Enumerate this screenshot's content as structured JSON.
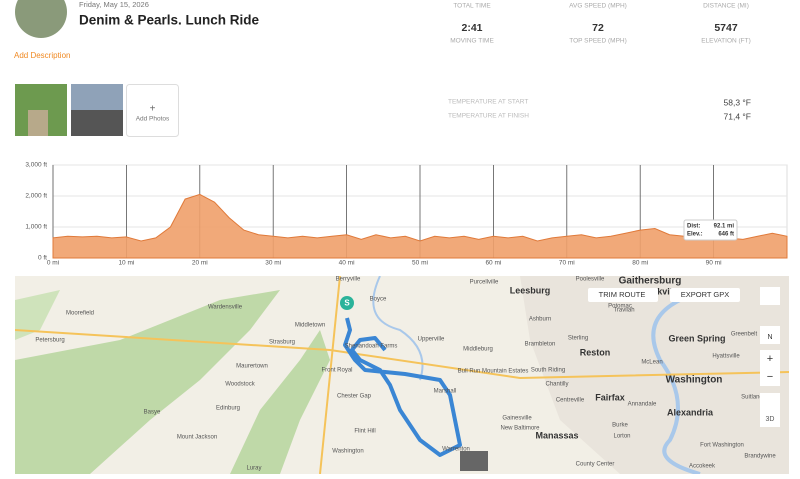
{
  "header": {
    "date": "Friday, May 15, 2026",
    "title": "Denim & Pearls. Lunch Ride",
    "add_description": "Add Description"
  },
  "stats": [
    {
      "label": "TOTAL TIME",
      "value": "2:41",
      "sublabel": "MOVING TIME"
    },
    {
      "label": "AVG SPEED (MPH)",
      "value": "72",
      "sublabel": "TOP SPEED (MPH)"
    },
    {
      "label": "DISTANCE (MI)",
      "value": "5747",
      "sublabel": "ELEVATION (FT)"
    }
  ],
  "photos": {
    "add_label": "Add Photos"
  },
  "temperature": [
    {
      "label": "TEMPERATURE AT START",
      "value": "58,3 °F"
    },
    {
      "label": "TEMPERATURE AT FINISH",
      "value": "71,4 °F"
    }
  ],
  "chart_data": {
    "type": "area",
    "color": "#f0a06a",
    "x": [
      0,
      2,
      4,
      6,
      8,
      10,
      12,
      14,
      16,
      18,
      20,
      22,
      24,
      26,
      28,
      30,
      32,
      34,
      36,
      38,
      40,
      42,
      44,
      46,
      48,
      50,
      52,
      54,
      56,
      58,
      60,
      62,
      64,
      66,
      68,
      70,
      72,
      74,
      76,
      78,
      80,
      82,
      84,
      86,
      88,
      90,
      92,
      94,
      96,
      98,
      100
    ],
    "values": [
      650,
      700,
      680,
      700,
      650,
      680,
      550,
      650,
      1000,
      1900,
      2050,
      1800,
      1300,
      900,
      750,
      700,
      650,
      700,
      650,
      700,
      750,
      600,
      750,
      650,
      700,
      550,
      700,
      650,
      700,
      600,
      700,
      650,
      700,
      550,
      650,
      700,
      750,
      650,
      700,
      800,
      900,
      950,
      750,
      700,
      600,
      650,
      646,
      600,
      700,
      800,
      700
    ],
    "xlim": [
      0,
      100
    ],
    "ylim": [
      0,
      3000
    ],
    "xticks": [
      {
        "value": 0,
        "label": "0 mi"
      },
      {
        "value": 10,
        "label": "10 mi"
      },
      {
        "value": 20,
        "label": "20 mi"
      },
      {
        "value": 30,
        "label": "30 mi"
      },
      {
        "value": 40,
        "label": "40 mi"
      },
      {
        "value": 50,
        "label": "50 mi"
      },
      {
        "value": 60,
        "label": "60 mi"
      },
      {
        "value": 70,
        "label": "70 mi"
      },
      {
        "value": 80,
        "label": "80 mi"
      },
      {
        "value": 90,
        "label": "90 mi"
      }
    ],
    "yticks": [
      {
        "value": 0,
        "label": "0 ft"
      },
      {
        "value": 1000,
        "label": "1,000 ft"
      },
      {
        "value": 2000,
        "label": "2,000 ft"
      },
      {
        "value": 3000,
        "label": "3,000 ft"
      }
    ],
    "grid": true,
    "tooltip": {
      "dist_label": "Dist:",
      "dist": "92.1 mi",
      "elev_label": "Elev.:",
      "elev": "646 ft"
    }
  },
  "map": {
    "start": "S",
    "trim": "TRIM ROUTE",
    "export": "EXPORT GPX",
    "compass": "N",
    "zoom_in": "+",
    "zoom_out": "−",
    "three_d": "3D",
    "labels": [
      "Berryville",
      "Purcellville",
      "Leesburg",
      "Poolesville",
      "Gaithersburg",
      "Rockville",
      "Moorefield",
      "Wardensville",
      "Petersburg",
      "Strasburg",
      "Middletown",
      "Boyce",
      "Shenandoah Farms",
      "Front Royal",
      "Upperville",
      "Middleburg",
      "Ashburn",
      "Sterling",
      "Brambleton",
      "Reston",
      "Green Spring",
      "Hyattsville",
      "Washington",
      "Woodstock",
      "Maurertown",
      "Chester Gap",
      "Marshall",
      "Bull Run Mountain Estates",
      "South Riding",
      "Chantilly",
      "Centreville",
      "Fairfax",
      "Alexandria",
      "Basye",
      "Edinburg",
      "Mount Jackson",
      "Flint Hill",
      "Gainesville",
      "New Baltimore",
      "Manassas",
      "Luray",
      "Warrenton",
      "Burke",
      "Lorton",
      "Fort Washington",
      "Accokeek",
      "Brandywine",
      "Suitland",
      "Potomac",
      "Travilah",
      "Greenbelt",
      "McLean",
      "Annandale",
      "County Center",
      "Washington"
    ]
  }
}
